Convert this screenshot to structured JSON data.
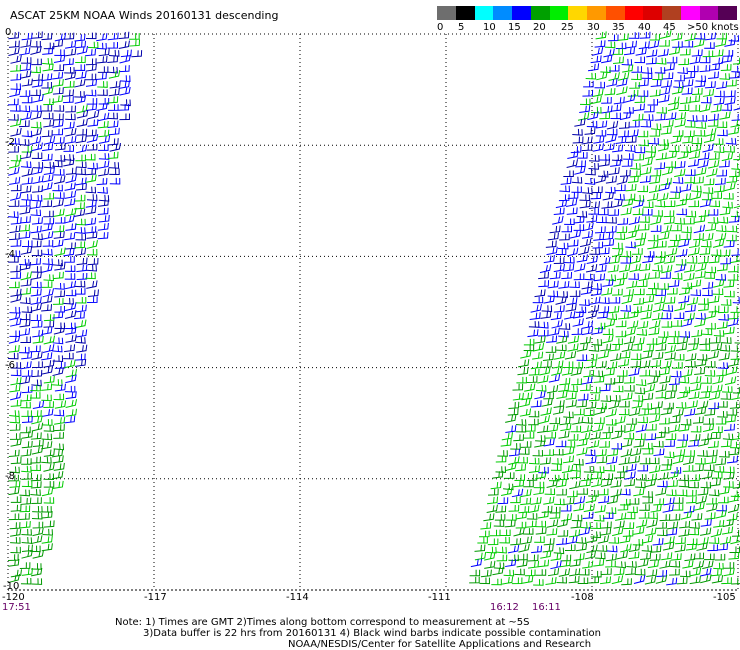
{
  "title": "ASCAT 25KM NOAA Winds 20160131 descending",
  "scale": {
    "colors": [
      "#6e6e6e",
      "#000000",
      "#00ffff",
      "#008cff",
      "#0000ff",
      "#00a000",
      "#00ee00",
      "#ffd700",
      "#ff9900",
      "#ff5000",
      "#ff0000",
      "#dd0000",
      "#b04020",
      "#ff00ff",
      "#b000b0",
      "#550055"
    ],
    "labels": [
      "0",
      "5",
      "10",
      "15",
      "20",
      "25",
      "30",
      "35",
      "40",
      "45",
      ">50 knots"
    ]
  },
  "map": {
    "y_labels": [
      "0",
      "-2",
      "-4",
      "-6",
      "-8",
      "-10"
    ],
    "x_labels": [
      "-120",
      "-117",
      "-114",
      "-111",
      "-108",
      "-105"
    ],
    "lat_range": [
      -10,
      0
    ],
    "lon_range": [
      -120,
      -105
    ],
    "grid": "dotted"
  },
  "times": {
    "west": "17:51",
    "east1": "16:12",
    "east2": "16:11"
  },
  "notes": {
    "line1": "Note: 1) Times are GMT 2)Times along bottom correspond to measurement at ~5S",
    "line2": "3)Data buffer is 22 hrs from 20160131 4) Black wind barbs indicate possible contamination",
    "line3": "NOAA/NESDIS/Center for Satellite Applications and Research"
  }
}
